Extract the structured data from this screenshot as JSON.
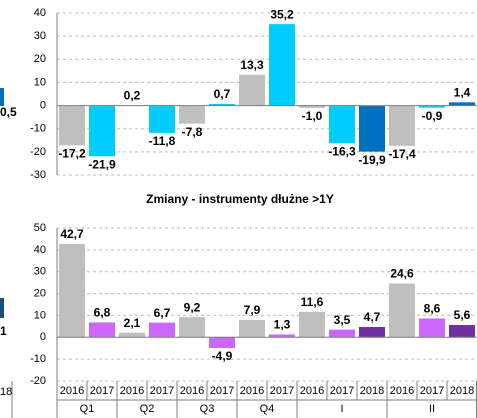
{
  "fragments": [
    "0,5",
    "1",
    "18"
  ],
  "chart_data": [
    {
      "type": "bar",
      "values": [
        -17.2,
        -21.9,
        0.2,
        -11.8,
        -7.8,
        0.7,
        13.3,
        35.2,
        -1.0,
        -16.3,
        -19.9,
        -17.4,
        -0.9,
        1.4
      ],
      "value_labels": [
        "-17,2",
        "-21,9",
        "0,2",
        "-11,8",
        "-7,8",
        "0,7",
        "13,3",
        "35,2",
        "-1,0",
        "-16,3",
        "-19,9",
        "-17,4",
        "-0,9",
        "1,4"
      ],
      "colors": [
        "#bfbfbf",
        "#00ccff",
        "#bfbfbf",
        "#00ccff",
        "#bfbfbf",
        "#00ccff",
        "#bfbfbf",
        "#00ccff",
        "#bfbfbf",
        "#00ccff",
        "#0070c0",
        "#bfbfbf",
        "#00ccff",
        "#0070c0"
      ],
      "ylim": [
        -30,
        40
      ],
      "yticks": [
        -30,
        -20,
        -10,
        0,
        10,
        20,
        30,
        40
      ],
      "grid": true
    },
    {
      "type": "bar",
      "title": "Zmiany - instrumenty dłużne >1Y",
      "categories": [
        [
          "2016",
          "Q1"
        ],
        [
          "2017",
          "Q1"
        ],
        [
          "2016",
          "Q2"
        ],
        [
          "2017",
          "Q2"
        ],
        [
          "2016",
          "Q3"
        ],
        [
          "2017",
          "Q3"
        ],
        [
          "2016",
          "Q4"
        ],
        [
          "2017",
          "Q4"
        ],
        [
          "2016",
          "I"
        ],
        [
          "2017",
          "I"
        ],
        [
          "2018",
          "I"
        ],
        [
          "2016",
          "II"
        ],
        [
          "2017",
          "II"
        ],
        [
          "2018",
          "II"
        ]
      ],
      "values": [
        42.7,
        6.8,
        2.1,
        6.7,
        9.2,
        -4.9,
        7.9,
        1.3,
        11.6,
        3.5,
        4.7,
        24.6,
        8.6,
        5.6
      ],
      "value_labels": [
        "42,7",
        "6,8",
        "2,1",
        "6,7",
        "9,2",
        "-4,9",
        "7,9",
        "1,3",
        "11,6",
        "3,5",
        "4,7",
        "24,6",
        "8,6",
        "5,6"
      ],
      "colors": [
        "#bfbfbf",
        "#cc66ff",
        "#bfbfbf",
        "#cc66ff",
        "#bfbfbf",
        "#cc66ff",
        "#bfbfbf",
        "#cc66ff",
        "#bfbfbf",
        "#cc66ff",
        "#7030a0",
        "#bfbfbf",
        "#cc66ff",
        "#7030a0"
      ],
      "ylim": [
        -20,
        50
      ],
      "yticks": [
        -20,
        -10,
        0,
        10,
        20,
        30,
        40,
        50
      ],
      "grid": true
    }
  ]
}
